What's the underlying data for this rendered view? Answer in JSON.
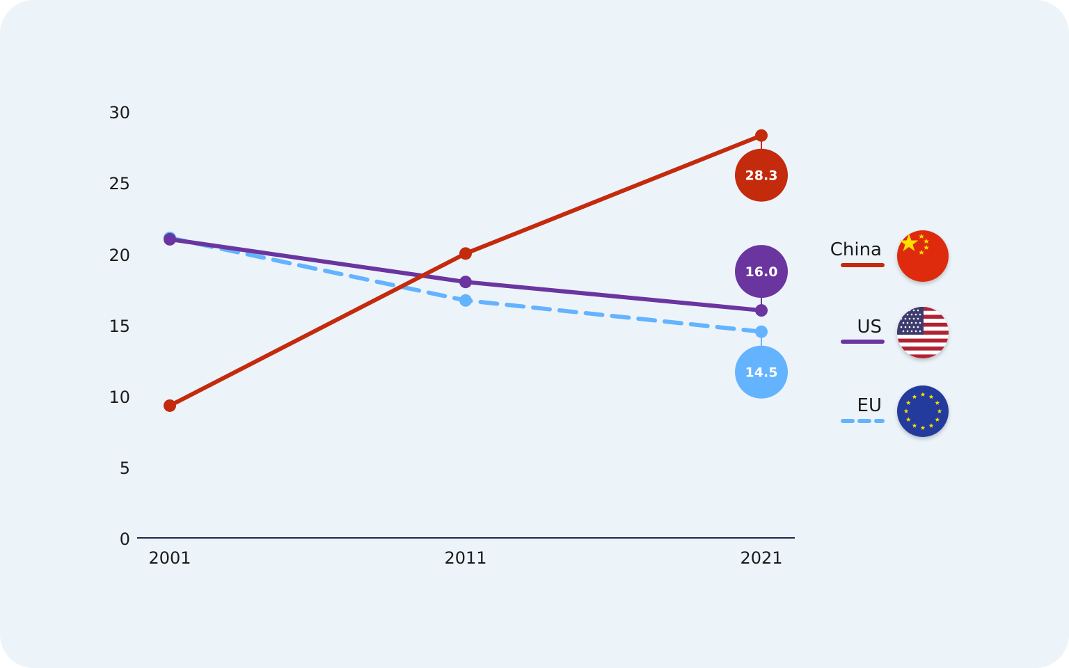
{
  "chart_data": {
    "type": "line",
    "title": "",
    "xlabel": "",
    "ylabel": "",
    "x": [
      "2001",
      "2011",
      "2021"
    ],
    "y_ticks": [
      "0",
      "5",
      "10",
      "15",
      "20",
      "25",
      "30"
    ],
    "ylim": [
      0,
      30
    ],
    "grid": false,
    "legend_position": "right",
    "series": [
      {
        "name": "China",
        "values": [
          9.3,
          20.0,
          28.3
        ],
        "color": "#c42a0c",
        "dashed": false,
        "end_label": "28.3",
        "flag_icon": "china-flag-icon"
      },
      {
        "name": "US",
        "values": [
          21.0,
          18.0,
          16.0
        ],
        "color": "#6b35a0",
        "dashed": false,
        "end_label": "16.0",
        "flag_icon": "us-flag-icon"
      },
      {
        "name": "EU",
        "values": [
          21.1,
          16.7,
          14.5
        ],
        "color": "#63b3ff",
        "dashed": true,
        "end_label": "14.5",
        "flag_icon": "eu-flag-icon"
      }
    ]
  }
}
